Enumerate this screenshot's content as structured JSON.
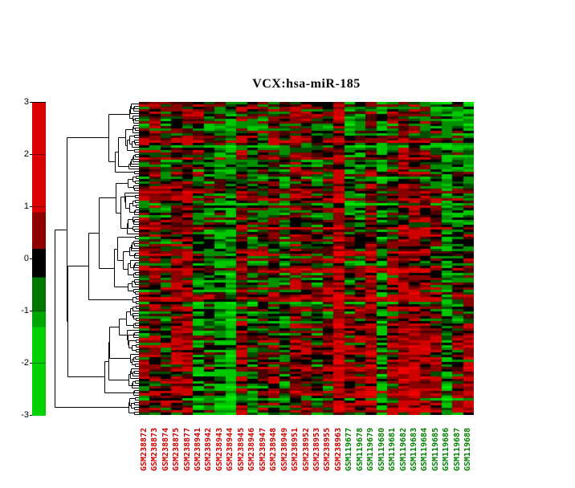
{
  "figure": {
    "title": "VCX:hsa-miR-185"
  },
  "colorbar": {
    "tick_labels": [
      "3",
      "2",
      "1",
      "0",
      "-1",
      "-2",
      "-3"
    ],
    "range": [
      -3,
      3
    ],
    "segments": [
      {
        "from": 3.0,
        "to": 0.9,
        "color": "#dd0000"
      },
      {
        "from": 0.9,
        "to": 0.2,
        "color": "#8f0000"
      },
      {
        "from": 0.2,
        "to": -0.35,
        "color": "#000000"
      },
      {
        "from": -0.35,
        "to": -1.0,
        "color": "#007800"
      },
      {
        "from": -1.0,
        "to": -1.3,
        "color": "#00a600"
      },
      {
        "from": -1.3,
        "to": -3.0,
        "color": "#00d200"
      }
    ]
  },
  "chart_data": {
    "type": "heatmap",
    "title": "VCX:hsa-miR-185",
    "value_range": [
      -3,
      3
    ],
    "colorbar_ticks": [
      3,
      2,
      1,
      0,
      -1,
      -2,
      -3
    ],
    "row_count": 130,
    "row_labels_visible": false,
    "row_dendrogram_position": "left",
    "colorbar_position": "left",
    "columns": [
      {
        "label": "GSM238872",
        "label_color": "#cc0000"
      },
      {
        "label": "GSM238873",
        "label_color": "#cc0000"
      },
      {
        "label": "GSM238874",
        "label_color": "#cc0000"
      },
      {
        "label": "GSM238875",
        "label_color": "#cc0000"
      },
      {
        "label": "GSM238877",
        "label_color": "#cc0000"
      },
      {
        "label": "GSM238941",
        "label_color": "#cc0000"
      },
      {
        "label": "GSM238942",
        "label_color": "#cc0000"
      },
      {
        "label": "GSM238943",
        "label_color": "#cc0000"
      },
      {
        "label": "GSM238944",
        "label_color": "#cc0000"
      },
      {
        "label": "GSM238945",
        "label_color": "#cc0000"
      },
      {
        "label": "GSM238946",
        "label_color": "#cc0000"
      },
      {
        "label": "GSM238947",
        "label_color": "#cc0000"
      },
      {
        "label": "GSM238948",
        "label_color": "#cc0000"
      },
      {
        "label": "GSM238949",
        "label_color": "#cc0000"
      },
      {
        "label": "GSM238951",
        "label_color": "#cc0000"
      },
      {
        "label": "GSM238952",
        "label_color": "#cc0000"
      },
      {
        "label": "GSM238953",
        "label_color": "#cc0000"
      },
      {
        "label": "GSM238955",
        "label_color": "#cc0000"
      },
      {
        "label": "GSM238963",
        "label_color": "#cc0000"
      },
      {
        "label": "GSM119677",
        "label_color": "#008000"
      },
      {
        "label": "GSM119678",
        "label_color": "#008000"
      },
      {
        "label": "GSM119679",
        "label_color": "#008000"
      },
      {
        "label": "GSM119680",
        "label_color": "#008000"
      },
      {
        "label": "GSM119681",
        "label_color": "#008000"
      },
      {
        "label": "GSM119682",
        "label_color": "#008000"
      },
      {
        "label": "GSM119683",
        "label_color": "#008000"
      },
      {
        "label": "GSM119684",
        "label_color": "#008000"
      },
      {
        "label": "GSM119685",
        "label_color": "#008000"
      },
      {
        "label": "GSM119686",
        "label_color": "#008000"
      },
      {
        "label": "GSM119687",
        "label_color": "#008000"
      },
      {
        "label": "GSM119688",
        "label_color": "#008000"
      }
    ],
    "value_colors": [
      {
        "min": 2.0,
        "color": "#ee0000"
      },
      {
        "min": 1.0,
        "color": "#cf0000"
      },
      {
        "min": 0.45,
        "color": "#8a0000"
      },
      {
        "min": 0.18,
        "color": "#4a0000"
      },
      {
        "min": -0.18,
        "color": "#000000"
      },
      {
        "min": -0.45,
        "color": "#004e00"
      },
      {
        "min": -1.0,
        "color": "#009000"
      },
      {
        "min": -2.0,
        "color": "#00c800"
      },
      {
        "min": -99,
        "color": "#00e600"
      }
    ],
    "render_hints": {
      "seed": 1337,
      "dendro_seed": 20517,
      "bias_scale": 2.2,
      "row_streak_prob": 0.12,
      "column_bias_top": [
        0.15,
        0.2,
        0.0,
        0.15,
        0.3,
        0.15,
        -0.1,
        0.05,
        -0.2,
        0.15,
        0.1,
        -0.1,
        0.15,
        0.0,
        0.25,
        0.15,
        -0.05,
        0.1,
        0.5,
        -0.4,
        -0.3,
        0.15,
        -0.3,
        0.1,
        0.15,
        0.1,
        0.0,
        -0.15,
        -0.35,
        -0.3,
        -0.45
      ],
      "column_bias_bottom": [
        0.1,
        0.3,
        0.1,
        0.45,
        0.4,
        -0.45,
        0.0,
        -0.55,
        -0.65,
        0.45,
        -0.35,
        0.2,
        0.1,
        -0.25,
        0.35,
        0.3,
        0.0,
        0.2,
        0.8,
        0.3,
        0.4,
        0.65,
        -0.3,
        0.45,
        0.75,
        0.75,
        0.55,
        0.3,
        -0.45,
        0.35,
        0.65
      ]
    }
  }
}
